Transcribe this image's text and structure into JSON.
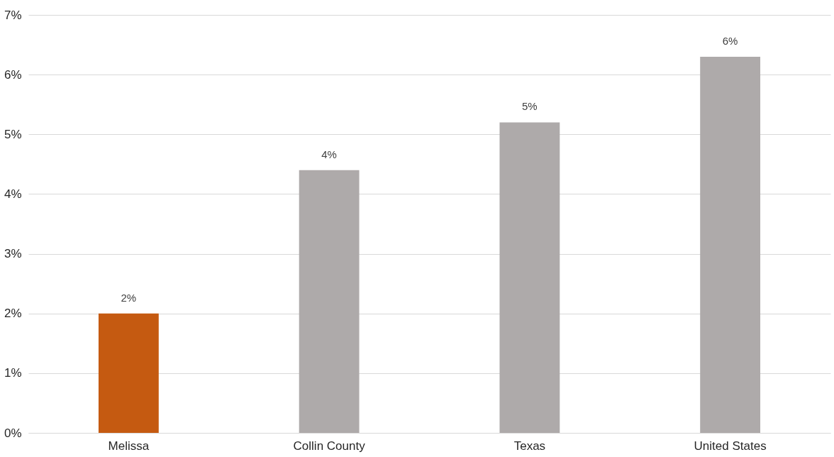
{
  "chart_data": {
    "type": "bar",
    "categories": [
      "Melissa",
      "Collin County",
      "Texas",
      "United States"
    ],
    "values": [
      2.0,
      4.4,
      5.2,
      6.3
    ],
    "colors": [
      "#c55a11",
      "#aeaaaa",
      "#aeaaaa",
      "#aeaaaa"
    ],
    "value_labels": [
      "2%",
      "4%",
      "5%",
      "6%"
    ],
    "ylim": [
      0,
      7
    ],
    "yticks": [
      {
        "value": 0,
        "label": "0%"
      },
      {
        "value": 1,
        "label": "1%"
      },
      {
        "value": 2,
        "label": "2%"
      },
      {
        "value": 3,
        "label": "3%"
      },
      {
        "value": 4,
        "label": "4%"
      },
      {
        "value": 5,
        "label": "5%"
      },
      {
        "value": 6,
        "label": "6%"
      },
      {
        "value": 7,
        "label": "7%"
      }
    ],
    "grid": "y"
  }
}
